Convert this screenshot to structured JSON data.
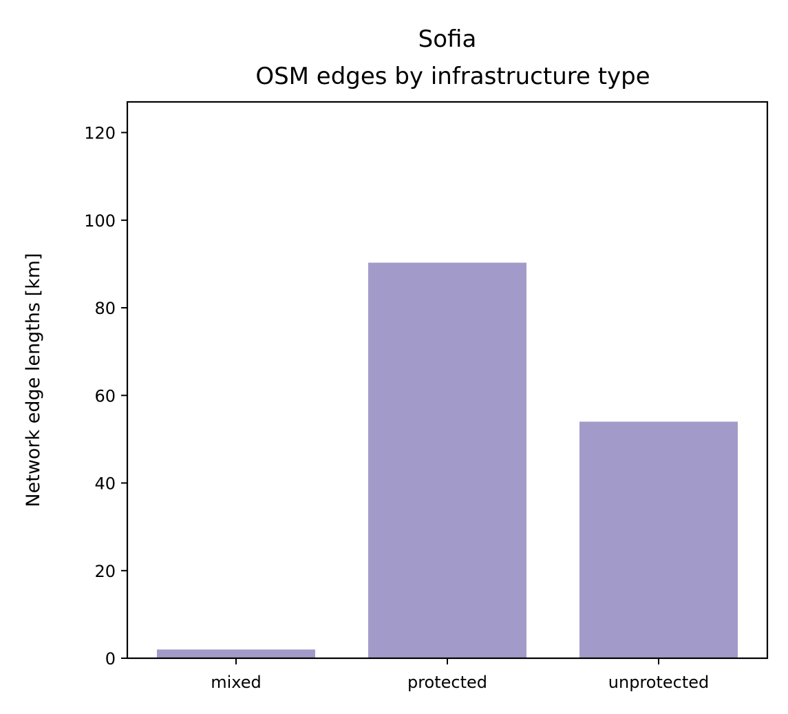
{
  "chart_data": {
    "type": "bar",
    "title_lines": [
      "Sofia",
      "OSM edges by infrastructure type"
    ],
    "xlabel": "",
    "ylabel": "Network edge lengths [km]",
    "categories": [
      "mixed",
      "protected",
      "unprotected"
    ],
    "values": [
      2.0,
      90.3,
      54.0
    ],
    "ylim": [
      0,
      127
    ],
    "yticks": [
      0,
      20,
      40,
      60,
      80,
      100,
      120
    ],
    "ytick_labels": [
      "0",
      "20",
      "40",
      "60",
      "80",
      "100",
      "120"
    ],
    "bar_color": "#a29bc9",
    "grid": false,
    "legend": "none"
  }
}
